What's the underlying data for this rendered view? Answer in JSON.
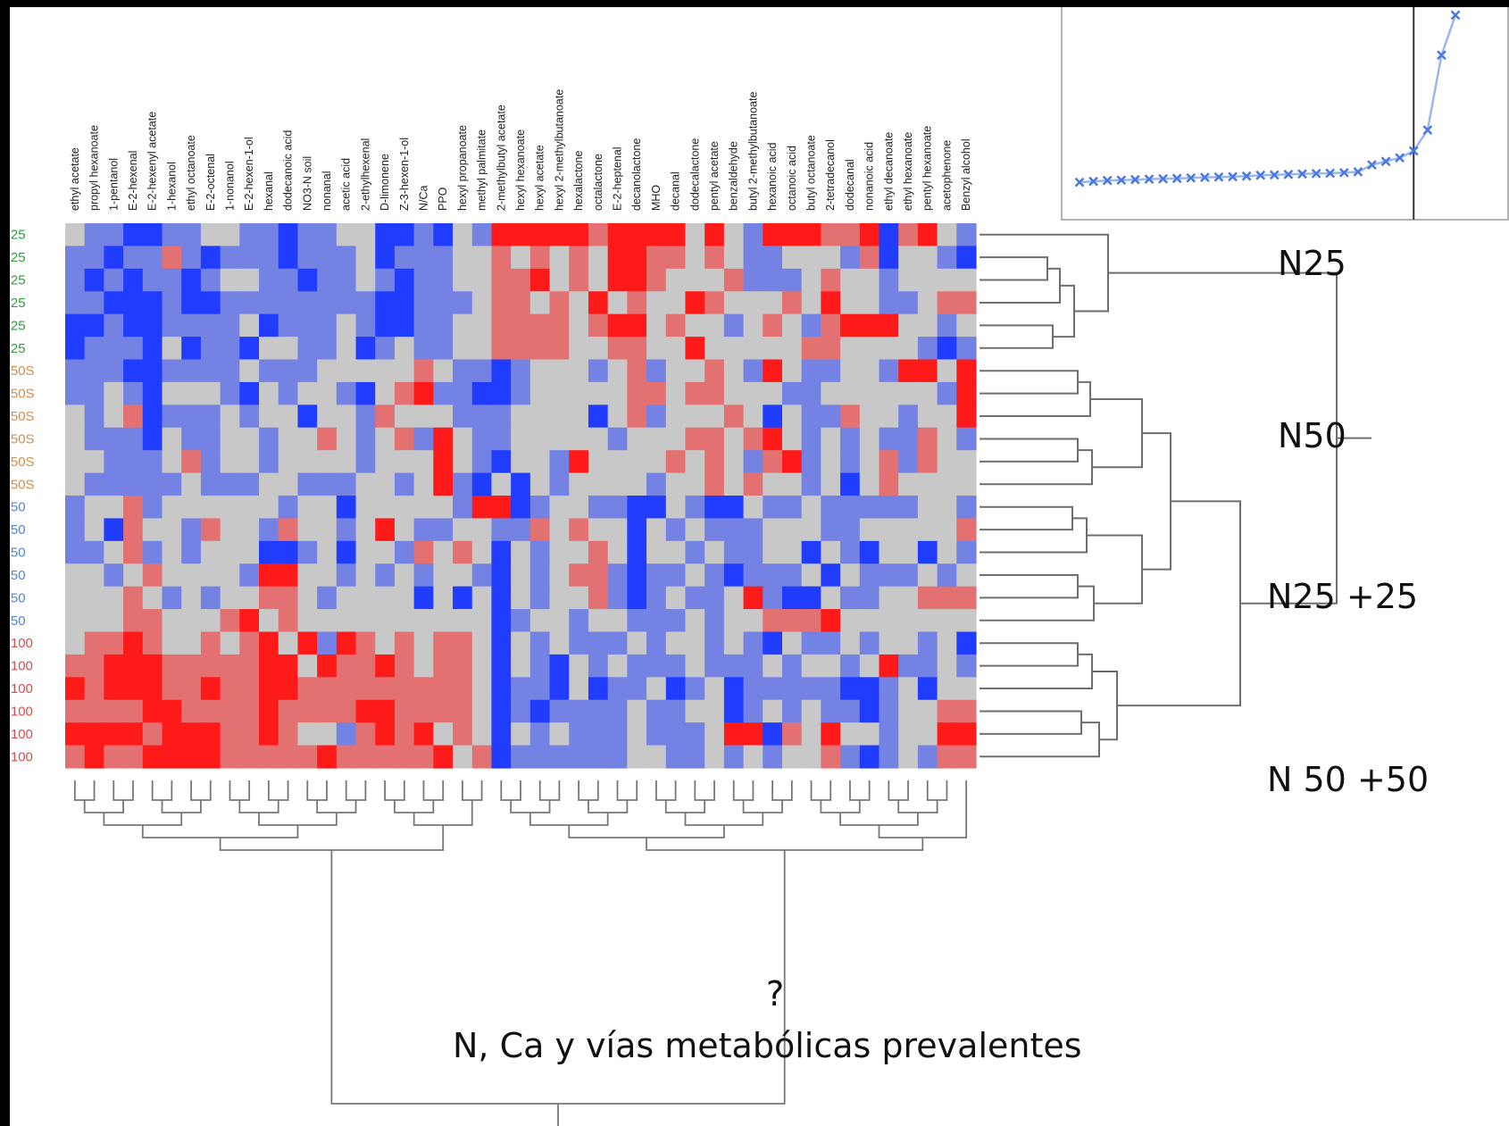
{
  "chart_data": [
    {
      "type": "heatmap",
      "columns": [
        "ethyl acetate",
        "propyl hexanoate",
        "1-pentanol",
        "E-2-hexenal",
        "E-2-hexenyl acetate",
        "1-hexanol",
        "ethyl octanoate",
        "E-2-octenal",
        "1-nonanol",
        "E-2-hexen-1-ol",
        "hexanal",
        "dodecanoic acid",
        "NO3-N soil",
        "nonanal",
        "acetic acid",
        "2-ethylhexenal",
        "D-limonene",
        "Z-3-hexen-1-ol",
        "N/Ca",
        "PPO",
        "hexyl propanoate",
        "methyl palmitate",
        "2-methylbutyl acetate",
        "hexyl hexanoate",
        "hexyl acetate",
        "hexyl 2-methylbutanoate",
        "hexalactone",
        "octalactone",
        "E-2-heptenal",
        "decanolactone",
        "MHO",
        "decanal",
        "dodecalactone",
        "pentyl acetate",
        "benzaldehyde",
        "butyl 2-methylbutanoate",
        "hexanoic acid",
        "octanoic acid",
        "butyl octanoate",
        "2-tetradecanol",
        "dodecanal",
        "nonanoic acid",
        "ethyl decanoate",
        "ethyl hexanoate",
        "pentyl hexanoate",
        "acetophenone",
        "Benzyl alcohol"
      ],
      "rows": [
        "'25",
        "'25",
        "'25",
        "'25",
        "'25",
        "'25",
        "'50S",
        "'50S",
        "'50S",
        "'50S",
        "'50S",
        "'50S",
        "'50",
        "'50",
        "'50",
        "'50",
        "'50",
        "'50",
        "'100",
        "'100",
        "'100",
        "'100",
        "'100",
        "'100"
      ],
      "row_colors": [
        "#2e9e3a",
        "#2e9e3a",
        "#2e9e3a",
        "#2e9e3a",
        "#2e9e3a",
        "#2e9e3a",
        "#d08c52",
        "#d08c52",
        "#d08c52",
        "#d08c52",
        "#d08c52",
        "#d08c52",
        "#4a86d8",
        "#4a86d8",
        "#4a86d8",
        "#4a86d8",
        "#4a86d8",
        "#4a86d8",
        "#e04848",
        "#e04848",
        "#e04848",
        "#e04848",
        "#e04848",
        "#e04848"
      ],
      "color_scale": {
        "low": "#1f3cff",
        "mid": "#c8c8c8",
        "high": "#ff1a1a",
        "range": [
          -2,
          2
        ]
      },
      "values": [
        [
          0,
          -1,
          -1,
          -2,
          -2,
          -1,
          -1,
          0,
          0,
          -1,
          -1,
          -2,
          -1,
          -1,
          0,
          0,
          -2,
          -2,
          -1,
          -2,
          0,
          -1,
          2,
          2,
          2,
          2,
          2,
          1,
          2,
          2,
          2,
          2,
          0,
          2,
          0,
          -1,
          2,
          2,
          2,
          1,
          1,
          2,
          -2,
          1,
          2,
          0,
          -1
        ],
        [
          -1,
          -1,
          -2,
          -1,
          -1,
          1,
          -1,
          -2,
          -1,
          -1,
          -1,
          -2,
          -1,
          -1,
          -1,
          0,
          -2,
          -1,
          -1,
          -1,
          0,
          0,
          1,
          0,
          1,
          0,
          1,
          0,
          2,
          2,
          1,
          1,
          0,
          1,
          0,
          -1,
          -1,
          0,
          0,
          0,
          -1,
          1,
          -2,
          0,
          0,
          -1,
          -2
        ],
        [
          -1,
          -2,
          -1,
          -2,
          -1,
          -1,
          -2,
          -1,
          0,
          0,
          -1,
          -1,
          -2,
          -1,
          -1,
          0,
          -1,
          -2,
          -1,
          -1,
          0,
          0,
          1,
          1,
          2,
          0,
          1,
          0,
          2,
          2,
          1,
          0,
          0,
          0,
          1,
          -1,
          -1,
          -1,
          0,
          1,
          0,
          0,
          -1,
          0,
          0,
          0,
          0
        ],
        [
          -1,
          -1,
          -2,
          -2,
          -2,
          -1,
          -2,
          -2,
          -1,
          -1,
          -1,
          -1,
          -1,
          -1,
          -1,
          -1,
          -2,
          -2,
          -1,
          -1,
          -1,
          0,
          1,
          1,
          0,
          1,
          0,
          2,
          0,
          1,
          0,
          0,
          2,
          1,
          0,
          0,
          0,
          1,
          0,
          2,
          0,
          0,
          -1,
          -1,
          0,
          1,
          1
        ],
        [
          -2,
          -2,
          -1,
          -2,
          -2,
          -1,
          -1,
          -1,
          -1,
          0,
          -2,
          -1,
          -1,
          -1,
          0,
          -1,
          -2,
          -2,
          -1,
          -1,
          0,
          0,
          1,
          1,
          1,
          1,
          0,
          1,
          2,
          2,
          0,
          1,
          0,
          0,
          -1,
          0,
          1,
          0,
          -1,
          1,
          2,
          2,
          2,
          0,
          0,
          -1,
          0
        ],
        [
          -2,
          -1,
          -1,
          -1,
          -2,
          0,
          -2,
          -1,
          -1,
          -2,
          0,
          0,
          -1,
          -1,
          0,
          -2,
          -1,
          0,
          -1,
          -1,
          0,
          0,
          1,
          1,
          1,
          1,
          0,
          0,
          1,
          1,
          0,
          0,
          2,
          0,
          0,
          0,
          0,
          0,
          1,
          1,
          0,
          0,
          0,
          0,
          -1,
          -2,
          -1
        ],
        [
          -1,
          -1,
          -1,
          -2,
          -2,
          -1,
          -1,
          -1,
          -1,
          0,
          -1,
          -1,
          -1,
          0,
          0,
          0,
          0,
          0,
          1,
          0,
          -1,
          -1,
          -2,
          -1,
          0,
          0,
          0,
          -1,
          0,
          1,
          -1,
          0,
          0,
          1,
          0,
          -1,
          2,
          0,
          -1,
          -1,
          0,
          0,
          -1,
          2,
          2,
          0,
          2
        ],
        [
          -1,
          -1,
          0,
          -1,
          -2,
          0,
          0,
          0,
          -1,
          -2,
          0,
          -1,
          0,
          0,
          -1,
          -2,
          0,
          1,
          2,
          -1,
          -1,
          -2,
          -2,
          -1,
          0,
          0,
          0,
          0,
          0,
          1,
          1,
          0,
          1,
          1,
          0,
          0,
          0,
          -1,
          -1,
          0,
          0,
          0,
          0,
          0,
          0,
          -1,
          2
        ],
        [
          0,
          -1,
          0,
          1,
          -2,
          -1,
          -1,
          -1,
          0,
          -1,
          0,
          0,
          -2,
          0,
          0,
          -1,
          1,
          0,
          0,
          0,
          -1,
          -1,
          -1,
          0,
          0,
          0,
          0,
          -2,
          0,
          1,
          -1,
          0,
          0,
          0,
          1,
          0,
          -2,
          0,
          -1,
          -1,
          1,
          0,
          0,
          -1,
          0,
          0,
          2
        ],
        [
          0,
          -1,
          -1,
          -1,
          -2,
          0,
          -1,
          -1,
          0,
          0,
          -1,
          0,
          0,
          1,
          0,
          -1,
          0,
          1,
          -1,
          2,
          0,
          -1,
          -1,
          0,
          0,
          0,
          0,
          0,
          -1,
          0,
          0,
          0,
          1,
          1,
          0,
          1,
          2,
          0,
          -1,
          0,
          -1,
          0,
          -1,
          -1,
          1,
          0,
          -1
        ],
        [
          0,
          0,
          -1,
          -1,
          -1,
          0,
          1,
          -1,
          0,
          0,
          -1,
          0,
          0,
          0,
          0,
          -1,
          0,
          0,
          0,
          2,
          0,
          -1,
          -2,
          0,
          0,
          -1,
          2,
          0,
          0,
          0,
          0,
          1,
          0,
          1,
          0,
          -1,
          1,
          2,
          -1,
          0,
          -1,
          0,
          1,
          -1,
          1,
          0,
          0
        ],
        [
          0,
          -1,
          -1,
          -1,
          -1,
          -1,
          0,
          -1,
          -1,
          -1,
          0,
          0,
          -1,
          -1,
          -1,
          0,
          0,
          -1,
          0,
          2,
          -1,
          -2,
          0,
          -2,
          0,
          -1,
          0,
          0,
          0,
          0,
          -1,
          0,
          0,
          1,
          0,
          1,
          0,
          0,
          -1,
          0,
          -2,
          0,
          1,
          0,
          0,
          0,
          0
        ],
        [
          -1,
          0,
          0,
          1,
          -1,
          0,
          0,
          0,
          0,
          0,
          0,
          -1,
          0,
          0,
          -2,
          0,
          0,
          0,
          0,
          0,
          -1,
          2,
          2,
          -2,
          -1,
          0,
          0,
          -1,
          -1,
          -2,
          -2,
          0,
          -1,
          -2,
          -2,
          0,
          -1,
          -1,
          0,
          -1,
          -1,
          -1,
          -1,
          -1,
          0,
          0,
          -1
        ],
        [
          -1,
          0,
          -2,
          1,
          0,
          0,
          -1,
          1,
          0,
          0,
          -1,
          1,
          0,
          0,
          -1,
          0,
          2,
          0,
          -1,
          -1,
          0,
          0,
          -1,
          -1,
          1,
          0,
          1,
          0,
          0,
          -2,
          0,
          -1,
          0,
          -1,
          -1,
          -1,
          0,
          0,
          0,
          -1,
          -1,
          0,
          0,
          0,
          0,
          0,
          1
        ],
        [
          -1,
          -1,
          0,
          1,
          -1,
          0,
          -1,
          0,
          0,
          0,
          -2,
          -2,
          -1,
          0,
          -2,
          0,
          0,
          -1,
          1,
          0,
          1,
          0,
          -2,
          0,
          -1,
          0,
          0,
          1,
          0,
          -2,
          0,
          0,
          -1,
          0,
          -1,
          -1,
          0,
          0,
          -2,
          0,
          -1,
          -2,
          0,
          0,
          -2,
          0,
          -1
        ],
        [
          0,
          0,
          -1,
          0,
          1,
          0,
          0,
          0,
          0,
          -1,
          2,
          2,
          0,
          0,
          -1,
          0,
          -1,
          0,
          -1,
          0,
          0,
          -1,
          -2,
          0,
          -1,
          0,
          1,
          1,
          -1,
          -2,
          -1,
          -1,
          0,
          -1,
          -2,
          -1,
          -1,
          -1,
          0,
          -2,
          0,
          -1,
          -1,
          -1,
          0,
          -1,
          0
        ],
        [
          0,
          0,
          0,
          1,
          0,
          -1,
          0,
          -1,
          0,
          0,
          1,
          1,
          0,
          -1,
          0,
          0,
          0,
          0,
          -2,
          0,
          -2,
          0,
          -2,
          0,
          -1,
          0,
          0,
          1,
          -1,
          -2,
          -1,
          0,
          -1,
          -1,
          0,
          2,
          -1,
          -2,
          -2,
          0,
          -1,
          -1,
          0,
          0,
          1,
          1,
          1
        ],
        [
          0,
          0,
          0,
          1,
          1,
          0,
          0,
          0,
          1,
          2,
          0,
          1,
          0,
          0,
          0,
          0,
          0,
          0,
          0,
          0,
          0,
          0,
          -2,
          -1,
          0,
          0,
          -1,
          0,
          0,
          -1,
          -1,
          -1,
          0,
          -1,
          0,
          0,
          1,
          1,
          1,
          2,
          0,
          0,
          0,
          0,
          0,
          0,
          0
        ],
        [
          0,
          1,
          1,
          2,
          1,
          0,
          0,
          1,
          0,
          1,
          2,
          0,
          2,
          -1,
          2,
          1,
          0,
          1,
          0,
          1,
          1,
          0,
          -2,
          0,
          -1,
          0,
          -1,
          -1,
          -1,
          0,
          -1,
          0,
          0,
          -1,
          0,
          -1,
          -2,
          0,
          -1,
          -1,
          0,
          -1,
          0,
          0,
          -1,
          0,
          -2
        ],
        [
          1,
          1,
          2,
          2,
          2,
          1,
          1,
          1,
          1,
          1,
          2,
          2,
          0,
          2,
          1,
          1,
          2,
          1,
          0,
          1,
          1,
          0,
          -2,
          0,
          -1,
          -2,
          0,
          -1,
          0,
          -1,
          -1,
          -1,
          0,
          -1,
          -1,
          -1,
          0,
          -1,
          0,
          0,
          -1,
          0,
          2,
          -1,
          -1,
          0,
          -1
        ],
        [
          2,
          1,
          2,
          2,
          2,
          1,
          1,
          2,
          1,
          1,
          2,
          2,
          1,
          1,
          1,
          1,
          1,
          1,
          1,
          1,
          1,
          0,
          -2,
          -1,
          -1,
          -2,
          0,
          -2,
          -1,
          -1,
          0,
          -2,
          -1,
          0,
          -2,
          -1,
          -1,
          -1,
          -1,
          -1,
          -2,
          -2,
          -1,
          0,
          -2,
          0,
          0
        ],
        [
          1,
          1,
          1,
          1,
          2,
          2,
          1,
          1,
          1,
          1,
          2,
          1,
          1,
          1,
          1,
          2,
          2,
          1,
          1,
          1,
          1,
          0,
          -2,
          -1,
          -2,
          -1,
          -1,
          -1,
          -1,
          0,
          -1,
          -1,
          0,
          0,
          -2,
          -1,
          0,
          -1,
          0,
          -1,
          -1,
          -2,
          -1,
          0,
          0,
          1,
          1
        ],
        [
          2,
          2,
          2,
          2,
          1,
          2,
          2,
          2,
          1,
          1,
          2,
          1,
          0,
          0,
          -1,
          1,
          2,
          1,
          2,
          0,
          1,
          0,
          -2,
          0,
          -1,
          0,
          -1,
          -1,
          -1,
          0,
          -1,
          -1,
          -1,
          0,
          2,
          2,
          -2,
          1,
          0,
          2,
          0,
          0,
          -1,
          0,
          0,
          2,
          2
        ],
        [
          1,
          2,
          1,
          1,
          2,
          2,
          2,
          2,
          1,
          1,
          1,
          1,
          1,
          2,
          1,
          1,
          1,
          1,
          1,
          2,
          0,
          1,
          -2,
          -1,
          -1,
          -1,
          -1,
          -1,
          -1,
          0,
          0,
          -1,
          -1,
          0,
          -1,
          0,
          -1,
          0,
          0,
          1,
          -1,
          -2,
          -1,
          0,
          -1,
          1,
          1
        ]
      ]
    },
    {
      "type": "line",
      "marker": "x",
      "color": "#4a78e0",
      "values": [
        0.02,
        0.025,
        0.03,
        0.032,
        0.035,
        0.038,
        0.04,
        0.042,
        0.045,
        0.048,
        0.05,
        0.052,
        0.055,
        0.06,
        0.062,
        0.065,
        0.068,
        0.07,
        0.072,
        0.075,
        0.08,
        0.12,
        0.14,
        0.16,
        0.2,
        0.32,
        0.75,
        0.98
      ],
      "vline_at_index": 24
    }
  ],
  "labels": {
    "group_n25": "N25",
    "group_n50": "N50",
    "group_n25_25": "N25 +25",
    "group_n50_50": "N 50 +50",
    "question": "?",
    "caption": "N, Ca y vías metabólicas prevalentes"
  }
}
